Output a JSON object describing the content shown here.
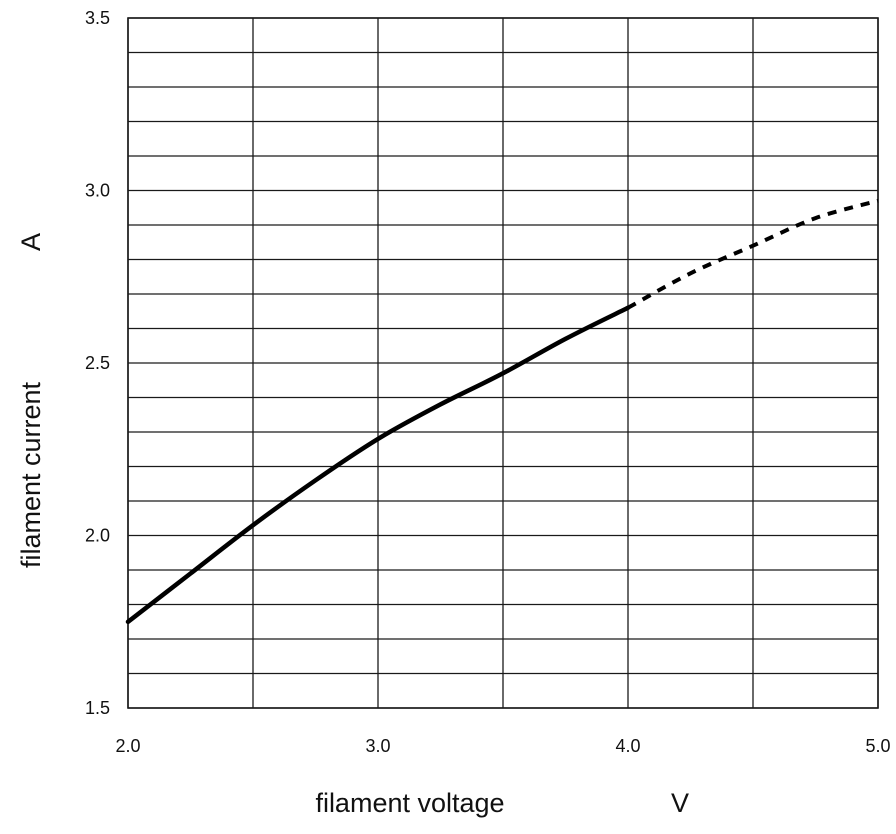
{
  "chart_data": {
    "type": "line",
    "xlabel": "filament voltage",
    "xunit": "V",
    "ylabel": "filament current",
    "yunit": "A",
    "xlim": [
      2.0,
      5.0
    ],
    "ylim": [
      1.5,
      3.5
    ],
    "x_ticks": [
      "2.0",
      "3.0",
      "4.0",
      "5.0"
    ],
    "y_ticks": [
      "1.5",
      "2.0",
      "2.5",
      "3.0",
      "3.5"
    ],
    "x_grid_step": 0.5,
    "y_grid_step": 0.1,
    "grid": true,
    "series": [
      {
        "style": "solid",
        "color": "#000000",
        "x": [
          2.0,
          2.25,
          2.5,
          2.75,
          3.0,
          3.25,
          3.5,
          3.75,
          4.0
        ],
        "y": [
          1.75,
          1.89,
          2.03,
          2.16,
          2.28,
          2.38,
          2.47,
          2.57,
          2.66
        ]
      },
      {
        "style": "dashed",
        "color": "#000000",
        "x": [
          4.0,
          4.25,
          4.5,
          4.75,
          5.0
        ],
        "y": [
          2.66,
          2.76,
          2.84,
          2.92,
          2.97
        ]
      }
    ]
  }
}
